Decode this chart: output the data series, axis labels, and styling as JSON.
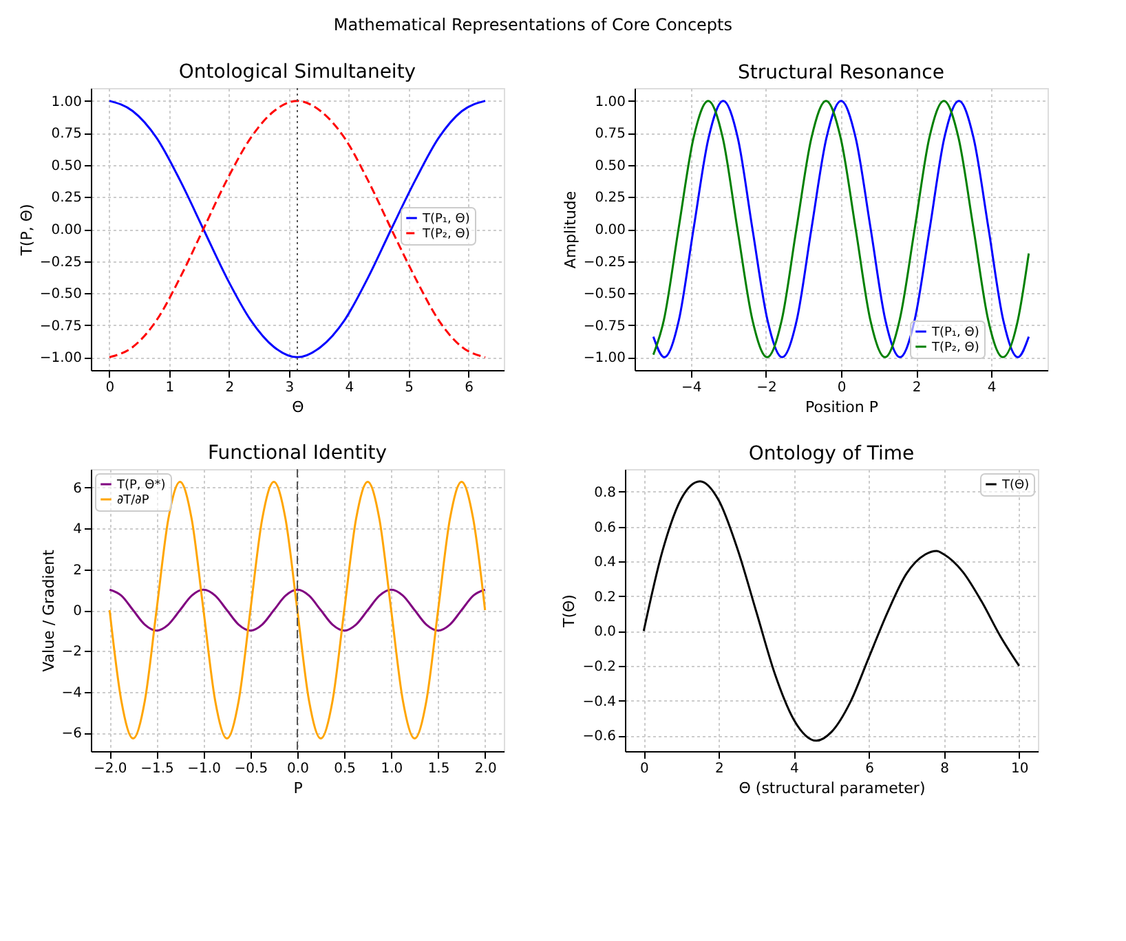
{
  "chart_data": [
    {
      "type": "line",
      "title": "Ontological Simultaneity",
      "xlabel": "Θ",
      "ylabel": "T(P, Θ)",
      "annotations": [
        "Mathematical Representations of Core Concepts"
      ],
      "grid": true,
      "legend": "right",
      "x": [
        0,
        0.39,
        0.79,
        1.18,
        1.57,
        1.96,
        2.36,
        2.75,
        3.14,
        3.53,
        3.93,
        4.32,
        4.71,
        5.11,
        5.5,
        5.89,
        6.28
      ],
      "series": [
        {
          "name": "T(P₁, Θ)",
          "color": "#0000ff",
          "line_style": "solid",
          "values": [
            1,
            0.92,
            0.71,
            0.38,
            0,
            -0.38,
            -0.71,
            -0.92,
            -1,
            -0.92,
            -0.71,
            -0.38,
            0,
            0.38,
            0.71,
            0.92,
            1
          ]
        },
        {
          "name": "T(P₂, Θ)",
          "color": "#ff0000",
          "line_style": "dashed",
          "values": [
            -1,
            -0.92,
            -0.71,
            -0.38,
            0,
            0.38,
            0.71,
            0.92,
            1,
            0.92,
            0.71,
            0.38,
            0,
            -0.38,
            -0.71,
            -0.92,
            -1
          ]
        }
      ],
      "ref_lines": [
        {
          "axis": "x",
          "value": 3.14,
          "color": "#555555",
          "line_style": "dotted"
        }
      ],
      "xlim": [
        -0.31,
        6.59
      ],
      "xticks": [
        0,
        1,
        2,
        3,
        4,
        5,
        6
      ],
      "ylim": [
        -1.1,
        1.1
      ],
      "yticks": [
        {
          "value": -1,
          "label": "−1.00"
        },
        {
          "value": -0.75,
          "label": "−0.75"
        },
        {
          "value": -0.5,
          "label": "−0.50"
        },
        {
          "value": -0.25,
          "label": "−0.25"
        },
        {
          "value": 0,
          "label": "0.00"
        },
        {
          "value": 0.25,
          "label": "0.25"
        },
        {
          "value": 0.5,
          "label": "0.50"
        },
        {
          "value": 0.75,
          "label": "0.75"
        },
        {
          "value": 1,
          "label": "1.00"
        }
      ]
    },
    {
      "type": "line",
      "title": "Structural Resonance",
      "xlabel": "Position P",
      "ylabel": "Amplitude",
      "grid": true,
      "legend": "bottom right",
      "series": [
        {
          "name": "T(P₁, Θ)",
          "color": "#0000ff",
          "line_style": "solid",
          "x": [
            -5,
            -4.71,
            -4.32,
            -3.93,
            -3.53,
            -3.14,
            -2.75,
            -2.36,
            -1.96,
            -1.57,
            -1.18,
            -0.79,
            -0.39,
            0,
            0.39,
            0.79,
            1.18,
            1.57,
            1.96,
            2.36,
            2.75,
            3.14,
            3.53,
            3.93,
            4.32,
            4.71,
            5
          ],
          "values": [
            -0.84,
            -1,
            -0.71,
            0,
            0.71,
            1,
            0.71,
            0,
            -0.71,
            -1,
            -0.71,
            0,
            0.71,
            1,
            0.71,
            0,
            -0.71,
            -1,
            -0.71,
            0,
            0.71,
            1,
            0.71,
            0,
            -0.71,
            -1,
            -0.84
          ]
        },
        {
          "name": "T(P₂, Θ)",
          "color": "#008000",
          "line_style": "solid",
          "x": [
            -5,
            -4.72,
            -4.33,
            -3.93,
            -3.54,
            -3.15,
            -2.76,
            -2.36,
            -1.97,
            -1.58,
            -1.19,
            -0.79,
            -0.4,
            -0.01,
            0.39,
            0.78,
            1.17,
            1.56,
            1.96,
            2.35,
            2.74,
            3.13,
            3.53,
            3.92,
            4.31,
            4.71,
            5
          ],
          "values": [
            -0.98,
            -0.71,
            0,
            0.71,
            1,
            0.71,
            0,
            -0.71,
            -1,
            -0.71,
            0,
            0.71,
            1,
            0.71,
            0,
            -0.71,
            -1,
            -0.71,
            0,
            0.71,
            1,
            0.71,
            0,
            -0.71,
            -1,
            -0.71,
            -0.19
          ]
        }
      ],
      "xlim": [
        -5.5,
        5.5
      ],
      "xticks": [
        {
          "value": -4,
          "label": "−4"
        },
        {
          "value": -2,
          "label": "−2"
        },
        0,
        2,
        4
      ],
      "ylim": [
        -1.1,
        1.1
      ],
      "yticks": [
        {
          "value": -1,
          "label": "−1.00"
        },
        {
          "value": -0.75,
          "label": "−0.75"
        },
        {
          "value": -0.5,
          "label": "−0.50"
        },
        {
          "value": -0.25,
          "label": "−0.25"
        },
        {
          "value": 0,
          "label": "0.00"
        },
        {
          "value": 0.25,
          "label": "0.25"
        },
        {
          "value": 0.5,
          "label": "0.50"
        },
        {
          "value": 0.75,
          "label": "0.75"
        },
        {
          "value": 1,
          "label": "1.00"
        }
      ]
    },
    {
      "type": "line",
      "title": "Functional Identity",
      "xlabel": "P",
      "ylabel": "Value / Gradient",
      "grid": true,
      "legend": "top left",
      "x": [
        -2,
        -1.875,
        -1.75,
        -1.625,
        -1.5,
        -1.375,
        -1.25,
        -1.125,
        -1,
        -0.875,
        -0.75,
        -0.625,
        -0.5,
        -0.375,
        -0.25,
        -0.125,
        0,
        0.125,
        0.25,
        0.375,
        0.5,
        0.625,
        0.75,
        0.875,
        1,
        1.125,
        1.25,
        1.375,
        1.5,
        1.625,
        1.75,
        1.875,
        2
      ],
      "series": [
        {
          "name": "T(P, Θ*)",
          "color": "#800080",
          "line_style": "solid",
          "values": [
            1,
            0.71,
            0,
            -0.71,
            -1,
            -0.71,
            0,
            0.71,
            1,
            0.71,
            0,
            -0.71,
            -1,
            -0.71,
            0,
            0.71,
            1,
            0.71,
            0,
            -0.71,
            -1,
            -0.71,
            0,
            0.71,
            1,
            0.71,
            0,
            -0.71,
            -1,
            -0.71,
            0,
            0.71,
            1
          ]
        },
        {
          "name": "∂T/∂P",
          "color": "#ffa500",
          "line_style": "solid",
          "values": [
            0,
            -4.44,
            -6.28,
            -4.44,
            0,
            4.44,
            6.28,
            4.44,
            0,
            -4.44,
            -6.28,
            -4.44,
            0,
            4.44,
            6.28,
            4.44,
            0,
            -4.44,
            -6.28,
            -4.44,
            0,
            4.44,
            6.28,
            4.44,
            0,
            -4.44,
            -6.28,
            -4.44,
            0,
            4.44,
            6.28,
            4.44,
            0
          ]
        }
      ],
      "ref_lines": [
        {
          "axis": "x",
          "value": 0,
          "color": "#555555",
          "line_style": "dashed"
        }
      ],
      "xlim": [
        -2.2,
        2.2
      ],
      "xticks": [
        {
          "value": -2,
          "label": "−2.0"
        },
        {
          "value": -1.5,
          "label": "−1.5"
        },
        {
          "value": -1,
          "label": "−1.0"
        },
        {
          "value": -0.5,
          "label": "−0.5"
        },
        {
          "value": 0,
          "label": "0.0"
        },
        {
          "value": 0.5,
          "label": "0.5"
        },
        {
          "value": 1,
          "label": "1.0"
        },
        {
          "value": 1.5,
          "label": "1.5"
        },
        {
          "value": 2,
          "label": "2.0"
        }
      ],
      "ylim": [
        -6.9,
        6.9
      ],
      "yticks": [
        {
          "value": -6,
          "label": "−6"
        },
        {
          "value": -4,
          "label": "−4"
        },
        {
          "value": -2,
          "label": "−2"
        },
        0,
        2,
        4,
        6
      ]
    },
    {
      "type": "line",
      "title": "Ontology of Time",
      "xlabel": "Θ (structural parameter)",
      "ylabel": "T(Θ)",
      "grid": true,
      "legend": "top right",
      "x": [
        0,
        0.5,
        1,
        1.5,
        2,
        2.5,
        3,
        3.5,
        4,
        4.6,
        5,
        5.5,
        6,
        6.5,
        7,
        7.5,
        7.8,
        8,
        8.5,
        9,
        9.5,
        10
      ],
      "series": [
        {
          "name": "T(Θ)",
          "color": "#000000",
          "line_style": "solid",
          "values": [
            0,
            0.46,
            0.76,
            0.86,
            0.75,
            0.47,
            0.11,
            -0.25,
            -0.51,
            -0.63,
            -0.58,
            -0.41,
            -0.15,
            0.11,
            0.33,
            0.44,
            0.46,
            0.44,
            0.34,
            0.17,
            -0.03,
            -0.2
          ]
        }
      ],
      "xlim": [
        -0.5,
        10.5
      ],
      "xticks": [
        0,
        2,
        4,
        6,
        8,
        10
      ],
      "ylim": [
        -0.69,
        0.93
      ],
      "yticks": [
        {
          "value": -0.6,
          "label": "−0.6"
        },
        {
          "value": -0.4,
          "label": "−0.4"
        },
        {
          "value": -0.2,
          "label": "−0.2"
        },
        {
          "value": 0,
          "label": "0.0"
        },
        {
          "value": 0.2,
          "label": "0.2"
        },
        {
          "value": 0.4,
          "label": "0.4"
        },
        {
          "value": 0.6,
          "label": "0.6"
        },
        {
          "value": 0.8,
          "label": "0.8"
        }
      ]
    }
  ]
}
